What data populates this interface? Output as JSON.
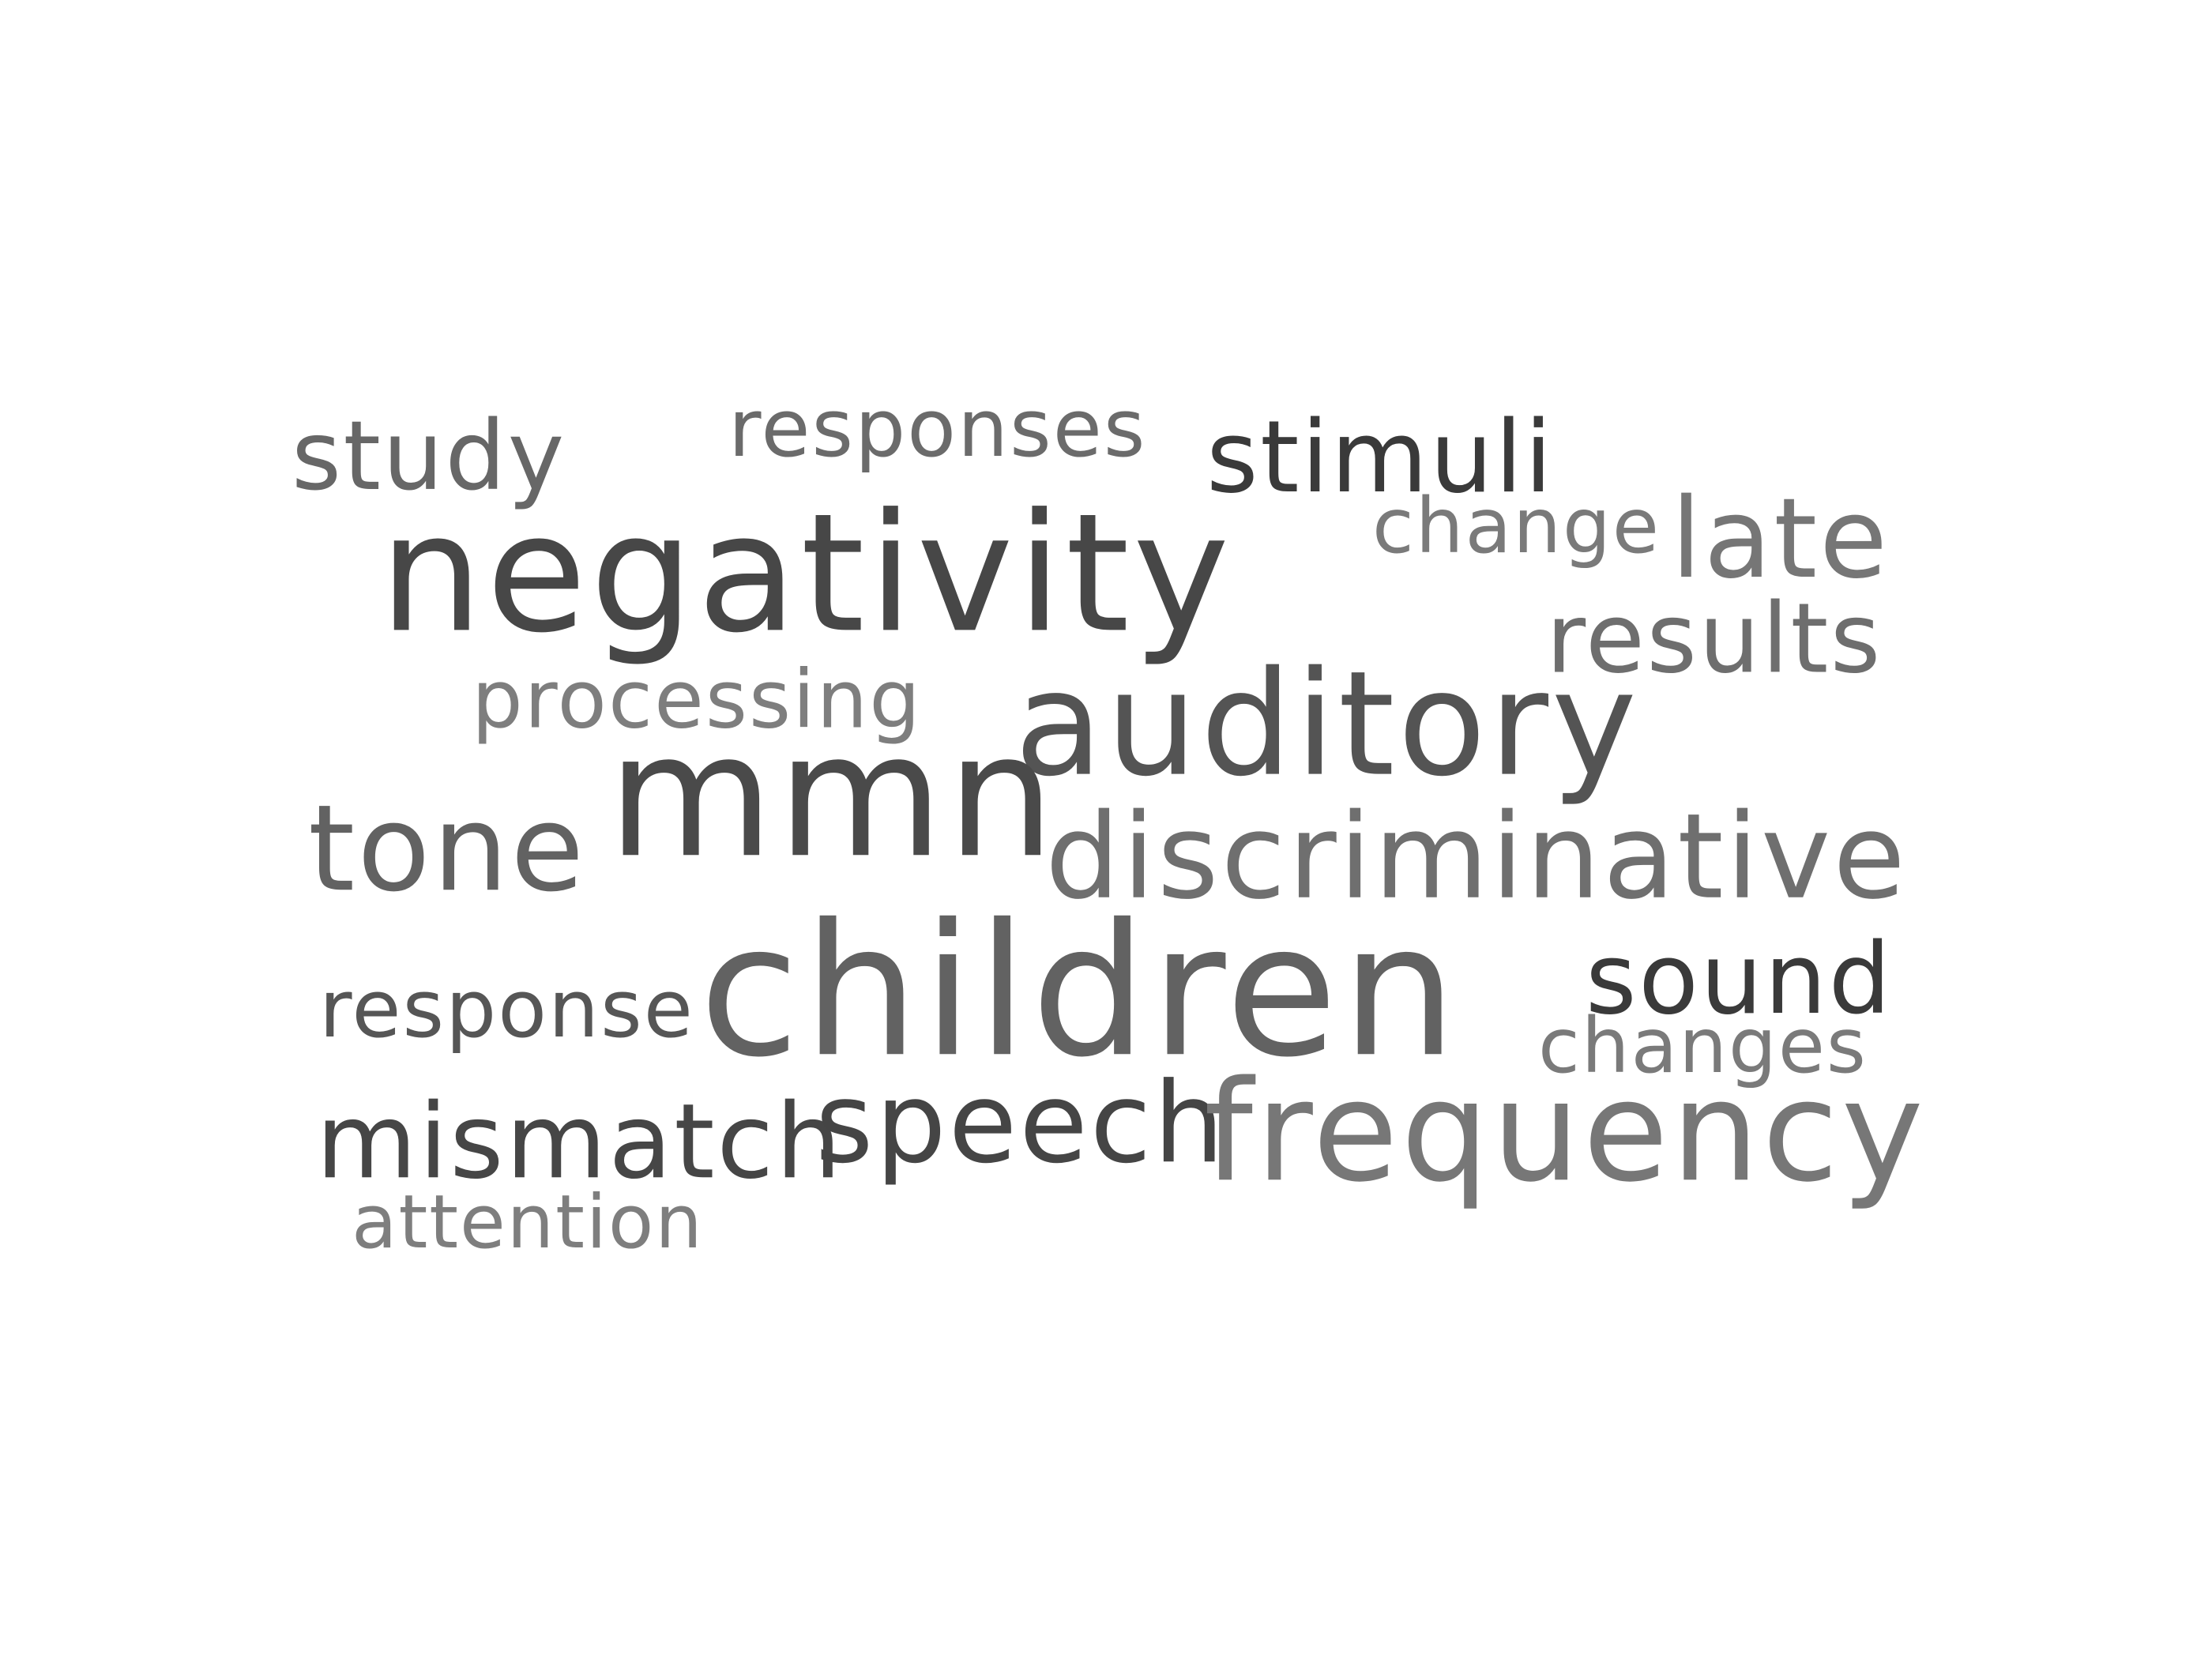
{
  "word_cloud": {
    "words": [
      {
        "text": "study",
        "color": "#676767"
      },
      {
        "text": "responses",
        "color": "#6b6b6b"
      },
      {
        "text": "stimuli",
        "color": "#3a3a3a"
      },
      {
        "text": "negativity",
        "color": "#474747"
      },
      {
        "text": "change",
        "color": "#7a7a7a"
      },
      {
        "text": "late",
        "color": "#767676"
      },
      {
        "text": "results",
        "color": "#6e6e6e"
      },
      {
        "text": "processing",
        "color": "#7e7e7e"
      },
      {
        "text": "auditory",
        "color": "#545454"
      },
      {
        "text": "mmn",
        "color": "#4a4a4a"
      },
      {
        "text": "tone",
        "color": "#626262"
      },
      {
        "text": "discriminative",
        "color": "#6f6f6f"
      },
      {
        "text": "children",
        "color": "#626262"
      },
      {
        "text": "sound",
        "color": "#3a3a3a"
      },
      {
        "text": "response",
        "color": "#565656"
      },
      {
        "text": "changes",
        "color": "#7a7a7a"
      },
      {
        "text": "mismatch",
        "color": "#464646"
      },
      {
        "text": "speech",
        "color": "#454545"
      },
      {
        "text": "frequency",
        "color": "#777777"
      },
      {
        "text": "attention",
        "color": "#7e7e7e"
      }
    ]
  }
}
